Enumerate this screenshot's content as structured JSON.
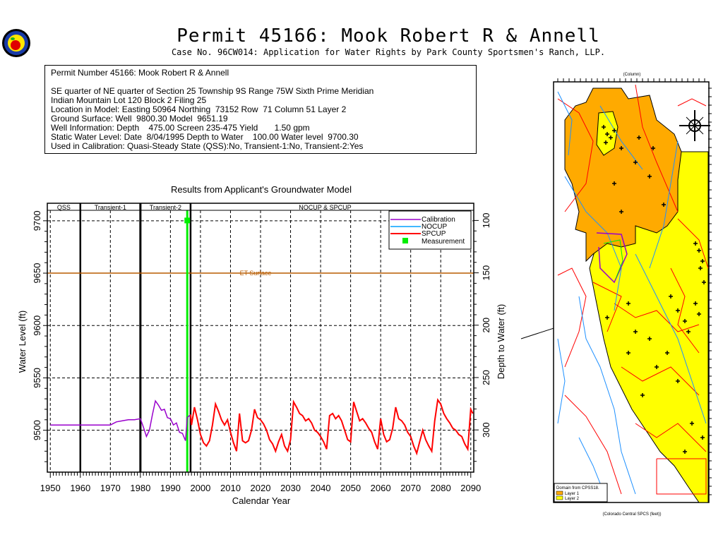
{
  "header": {
    "title": "Permit 45166:  Mook Robert R & Annell",
    "subtitle": "Case No. 96CW014: Application for Water Rights by Park County Sportsmen's Ranch, LLP."
  },
  "info": {
    "line1": "Permit Number 45166: Mook Robert R & Annell",
    "line2": "SE quarter of NE quarter of Section 25 Township 9S Range 75W Sixth Prime Meridian",
    "line3": "Indian Mountain Lot 120 Block 2 Filing 25",
    "line4": "Location in Model: Easting 50964 Northing  73152 Row  71 Column 51 Layer 2",
    "line5": "Ground Surface: Well  9800.30 Model  9651.19",
    "line6": "Well Information: Depth    475.00 Screen 235-475 Yield       1.50 gpm",
    "line7": "Static Water Level: Date  8/04/1995 Depth to Water    100.00 Water level  9700.30",
    "line8": "Used in Calibration: Quasi-Steady State (QSS):No, Transient-1:No, Transient-2:Yes"
  },
  "colors": {
    "calibration": "#9900cc",
    "nocup": "#00a0ff",
    "spcup": "#ff0000",
    "measurement": "#00ee00",
    "et_surface": "#b85c00",
    "layer1": "#ffaa00",
    "layer2": "#ffff00"
  },
  "chart_data": {
    "type": "line",
    "title": "Results from Applicant's Groundwater Model",
    "xlabel": "Calendar Year",
    "ylabel": "Water Level (ft)",
    "y2label": "Depth to Water (ft)",
    "xlim": [
      1949,
      2091
    ],
    "ylim": [
      9460,
      9710
    ],
    "xticks": [
      1950,
      1960,
      1970,
      1980,
      1990,
      2000,
      2010,
      2020,
      2030,
      2040,
      2050,
      2060,
      2070,
      2080,
      2090
    ],
    "yticks": [
      9500,
      9550,
      9600,
      9650,
      9700
    ],
    "y2ticks": [
      100,
      150,
      200,
      250,
      300
    ],
    "ground_surface": 9800.3,
    "grid": true,
    "legend_position": "top-right",
    "periods": [
      {
        "label": "QSS",
        "start": 1949,
        "end": 1960
      },
      {
        "label": "Transient-1",
        "start": 1960,
        "end": 1980
      },
      {
        "label": "Transient-2",
        "start": 1980,
        "end": 1996.7
      },
      {
        "label": "NOCUP  &  SPCUP",
        "start": 1996.7,
        "end": 2091
      }
    ],
    "reference_line": {
      "label": "ET Surface",
      "y": 9650
    },
    "measurement": {
      "name": "Measurement",
      "x": 1995.6,
      "y": 9700.3
    },
    "series": [
      {
        "name": "Calibration",
        "x": [
          1950,
          1960,
          1970,
          1972,
          1974,
          1976,
          1978,
          1980,
          1981,
          1982,
          1983,
          1984,
          1985,
          1986,
          1987,
          1988,
          1989,
          1990,
          1991,
          1992,
          1993,
          1994,
          1995,
          1995.6,
          1996.7
        ],
        "y": [
          9505,
          9505,
          9505,
          9508,
          9509,
          9510,
          9510,
          9511,
          9503,
          9494,
          9500,
          9515,
          9528,
          9524,
          9519,
          9520,
          9512,
          9511,
          9505,
          9507,
          9498,
          9497,
          9490,
          9512,
          9515
        ]
      },
      {
        "name": "NOCUP",
        "x": [],
        "y": []
      },
      {
        "name": "SPCUP",
        "x": [
          1996.7,
          1997,
          1998,
          1999,
          2000,
          2001,
          2002,
          2003,
          2004,
          2005,
          2006,
          2007,
          2008,
          2009,
          2010,
          2011,
          2012,
          2013,
          2014,
          2015,
          2016,
          2017,
          2018,
          2019,
          2020,
          2021,
          2022,
          2023,
          2024,
          2025,
          2026,
          2027,
          2028,
          2029,
          2030,
          2031,
          2032,
          2033,
          2034,
          2035,
          2036,
          2037,
          2038,
          2039,
          2040,
          2041,
          2042,
          2043,
          2044,
          2045,
          2046,
          2047,
          2048,
          2049,
          2050,
          2051,
          2052,
          2053,
          2054,
          2055,
          2056,
          2057,
          2058,
          2059,
          2060,
          2061,
          2062,
          2063,
          2064,
          2065,
          2066,
          2067,
          2068,
          2069,
          2070,
          2071,
          2072,
          2073,
          2074,
          2075,
          2076,
          2077,
          2078,
          2079,
          2080,
          2081,
          2082,
          2083,
          2084,
          2085,
          2086,
          2087,
          2088,
          2089,
          2090,
          2090.7
        ],
        "y": [
          9515,
          9505,
          9522,
          9510,
          9496,
          9488,
          9485,
          9490,
          9505,
          9525,
          9518,
          9510,
          9505,
          9510,
          9498,
          9488,
          9480,
          9516,
          9490,
          9488,
          9490,
          9500,
          9520,
          9512,
          9510,
          9506,
          9500,
          9491,
          9487,
          9480,
          9489,
          9496,
          9485,
          9480,
          9491,
          9527,
          9522,
          9516,
          9514,
          9509,
          9511,
          9507,
          9500,
          9498,
          9494,
          9489,
          9482,
          9514,
          9516,
          9511,
          9514,
          9509,
          9500,
          9491,
          9489,
          9527,
          9518,
          9509,
          9511,
          9507,
          9502,
          9498,
          9489,
          9482,
          9511,
          9496,
          9489,
          9491,
          9502,
          9522,
          9511,
          9509,
          9505,
          9498,
          9494,
          9485,
          9478,
          9489,
          9500,
          9491,
          9485,
          9480,
          9509,
          9529,
          9525,
          9516,
          9511,
          9507,
          9502,
          9500,
          9496,
          9494,
          9487,
          9482,
          9520,
          9516
        ]
      }
    ]
  },
  "map": {
    "top_axis_label": "(Column)",
    "bottom_axis_label": "(Colorado Central SPCS (feet))",
    "legend_title": "Domain from CPSS18.",
    "legend_items": [
      "Layer 1",
      "Layer 2"
    ]
  }
}
